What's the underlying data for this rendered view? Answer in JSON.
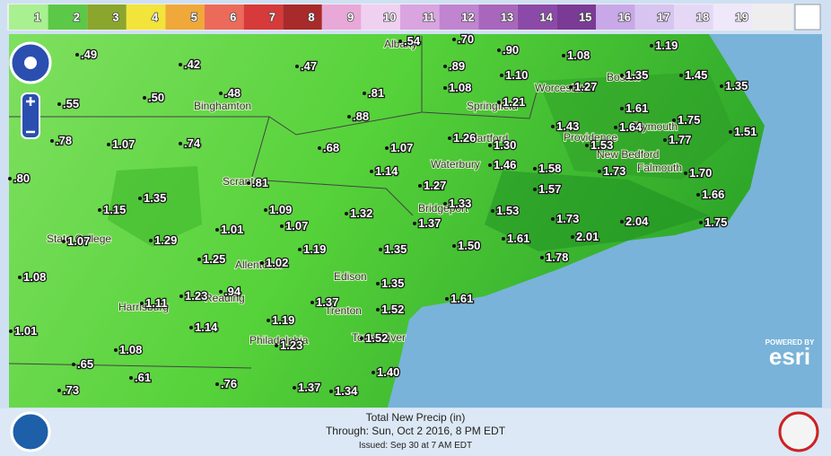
{
  "legend": {
    "labels": [
      "1",
      "2",
      "3",
      "4",
      "5",
      "6",
      "7",
      "8",
      "9",
      "10",
      "11",
      "12",
      "13",
      "14",
      "15",
      "16",
      "17",
      "18",
      "19"
    ]
  },
  "map": {
    "precip_labels": [
      ".49",
      ".42",
      ".47",
      ".54",
      ".70",
      ".90",
      "1.19",
      "1.08",
      ".89",
      "1.10",
      "1.35",
      "1.45",
      "1.35",
      ".55",
      ".50",
      ".48",
      ".81",
      "1.08",
      "1.27",
      "1.21",
      ".88",
      "1.61",
      "1.75",
      ".78",
      "1.07",
      ".74",
      "1.43",
      "1.64",
      "1.51",
      ".68",
      "1.07",
      "1.26",
      "1.30",
      "1.77",
      "1.53",
      "1.46",
      "1.58",
      "1.73",
      "1.70",
      ".80",
      "1.14",
      "1.27",
      ".81",
      "1.57",
      "1.66",
      "1.35",
      "1.15",
      "1.09",
      "1.33",
      "1.53",
      "1.73",
      "2.04",
      "1.75",
      "1.32",
      "1.07",
      "1.01",
      "1.37",
      "2.01",
      "1.61",
      "1.50",
      "1.07",
      "1.29",
      "1.19",
      "1.35",
      "1.25",
      "1.02",
      "1.78",
      "1.08",
      ".94",
      "1.23",
      "1.35",
      "1.61",
      "1.11",
      "1.37",
      "1.52",
      "1.01",
      "1.14",
      "1.19",
      "1.52",
      "1.08",
      ".65",
      "1.23",
      ".61",
      "1.40",
      ".76",
      "1.37",
      ".73",
      "1.34"
    ],
    "cities": [
      "Albany",
      "Springfield",
      "Worcester",
      "Boston",
      "Binghamton",
      "Providence",
      "Plymouth",
      "New Bedford",
      "Falmouth",
      "Hartford",
      "Waterbury",
      "Scranton",
      "Bridgeport",
      "State College",
      "Allentown",
      "Edison",
      "Harrisburg",
      "Reading",
      "Trenton",
      "Philadelphia",
      "Toms River"
    ]
  },
  "footer": {
    "title": "Total New Precip (in)",
    "through": "Through: Sun, Oct  2 2016,   8 PM EDT",
    "issued": "Issued: Sep 30 at 7 AM EDT"
  },
  "attribution": {
    "powered": "POWERED BY",
    "brand": "esri"
  }
}
